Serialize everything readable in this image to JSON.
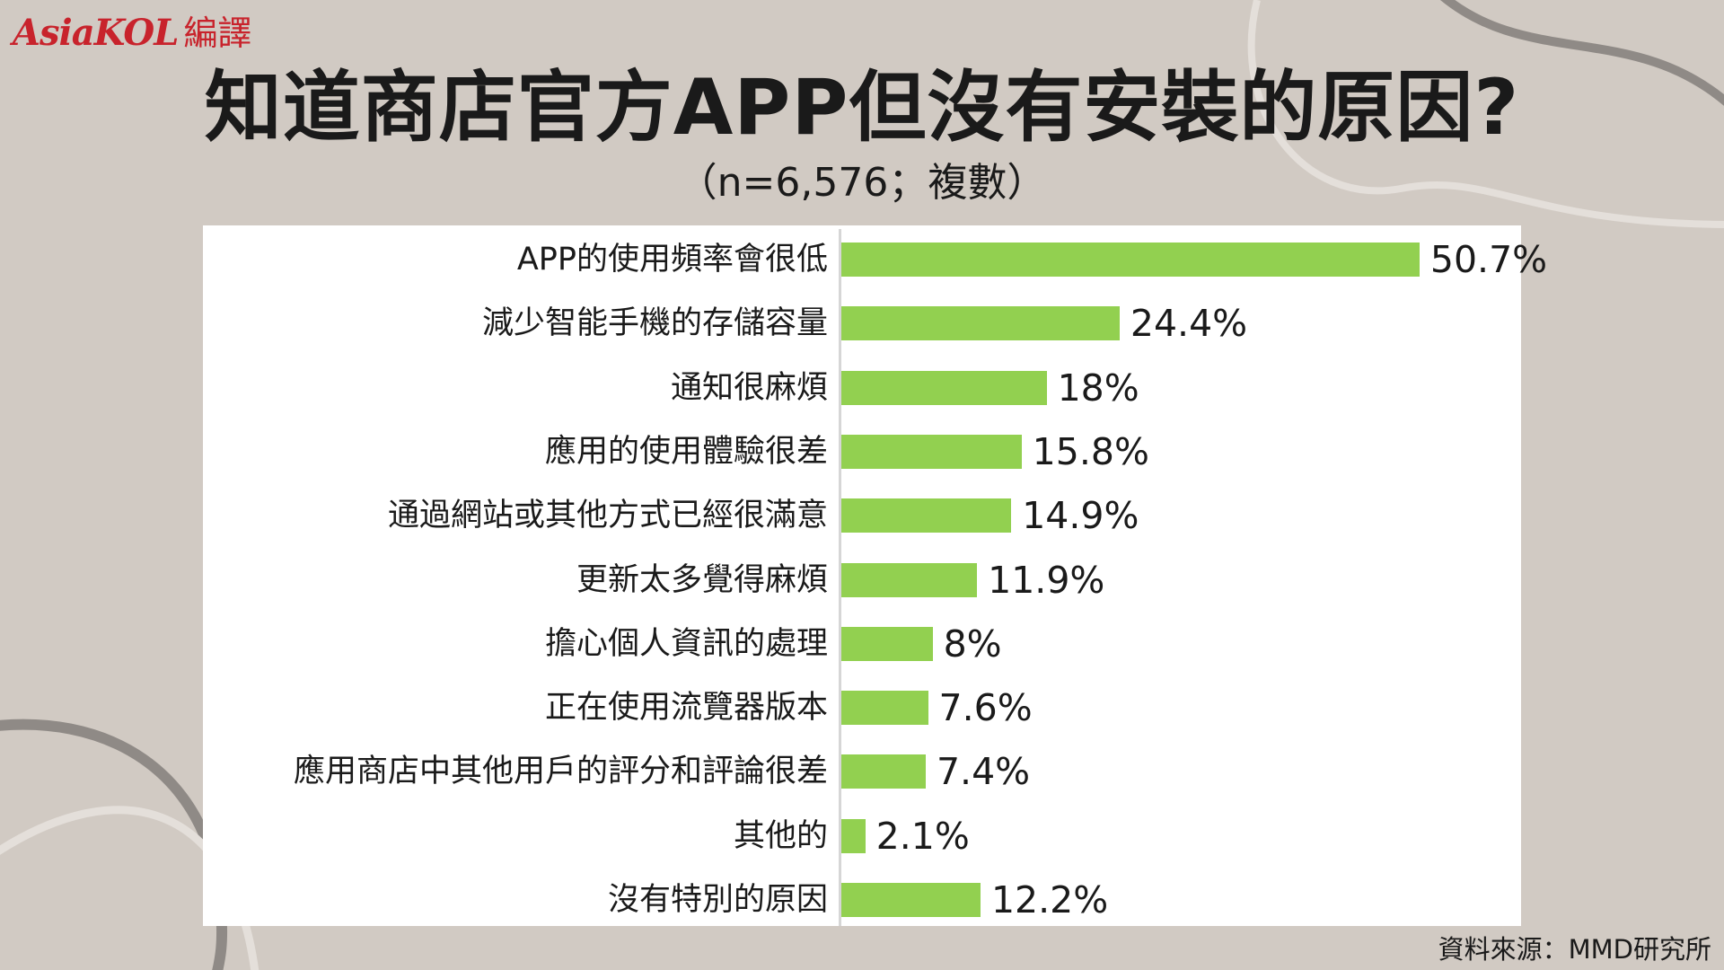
{
  "brand": {
    "logo_text": "AsiaKOL",
    "logo_sub": "編譯",
    "accent": "#c8232c"
  },
  "header": {
    "title": "知道商店官方APP但沒有安裝的原因?",
    "subtitle": "（n=6,576；複數）"
  },
  "footer": {
    "source": "資料來源：MMD研究所"
  },
  "colors": {
    "background": "#d1cac3",
    "panel": "#ffffff",
    "bar": "#92d050"
  },
  "chart_data": {
    "type": "bar",
    "orientation": "horizontal",
    "categories": [
      "APP的使用頻率會很低",
      "減少智能手機的存儲容量",
      "通知很麻煩",
      "應用的使用體驗很差",
      "通過網站或其他方式已經很滿意",
      "更新太多覺得麻煩",
      "擔心個人資訊的處理",
      "正在使用流覽器版本",
      "應用商店中其他用戶的評分和評論很差",
      "其他的",
      "沒有特別的原因"
    ],
    "values": [
      50.7,
      24.4,
      18,
      15.8,
      14.9,
      11.9,
      8,
      7.6,
      7.4,
      2.1,
      12.2
    ],
    "value_labels": [
      "50.7%",
      "24.4%",
      "18%",
      "15.8%",
      "14.9%",
      "11.9%",
      "8%",
      "7.6%",
      "7.4%",
      "2.1%",
      "12.2%"
    ],
    "unit": "%",
    "xlim": [
      0,
      60
    ],
    "grid": false,
    "legend": "none"
  }
}
